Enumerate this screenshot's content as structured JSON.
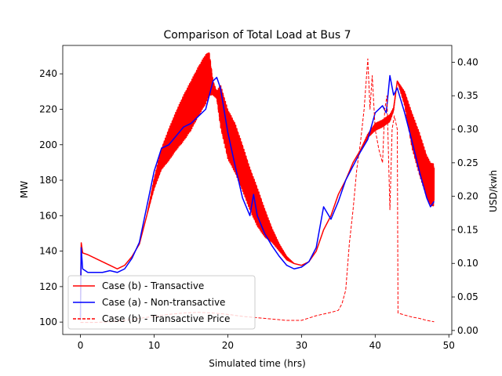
{
  "chart_data": {
    "type": "line",
    "title": "Comparison of Total Load at Bus 7",
    "xlabel": "Simulated time (hrs)",
    "ylabel": "MW",
    "y2label": "USD/kwh",
    "xlim": [
      -2.4,
      50.4
    ],
    "ylim": [
      93,
      256
    ],
    "y2lim": [
      -0.006,
      0.425
    ],
    "xticks": [
      0,
      10,
      20,
      30,
      40,
      50
    ],
    "yticks": [
      100,
      120,
      140,
      160,
      180,
      200,
      220,
      240
    ],
    "y2ticks": [
      0.0,
      0.05,
      0.1,
      0.15,
      0.2,
      0.25,
      0.3,
      0.35,
      0.4
    ],
    "y2tick_labels": [
      "0.00",
      "0.05",
      "0.10",
      "0.15",
      "0.20",
      "0.25",
      "0.30",
      "0.35",
      "0.40"
    ],
    "legend_position": "lower-left",
    "series": [
      {
        "name": "Case (b) - Transactive",
        "color": "#ff0000",
        "style": "solid",
        "axis": "left",
        "oscillating": true,
        "x": [
          0,
          0.1,
          0.3,
          1,
          2,
          3,
          4,
          5,
          6,
          7,
          8,
          9,
          10,
          11,
          12,
          13,
          14,
          15,
          16,
          17,
          17.5,
          18,
          18.5,
          19,
          20,
          21,
          22,
          23,
          24,
          25,
          26,
          27,
          28,
          29,
          30,
          31,
          32,
          33,
          34,
          35,
          36,
          37,
          38,
          39,
          40,
          41,
          42,
          42.5,
          43,
          44,
          45,
          46,
          47,
          47.5,
          48
        ],
        "y": [
          103,
          145,
          139,
          138,
          136,
          134,
          132,
          130,
          132,
          137,
          144,
          160,
          178,
          192,
          200,
          208,
          215,
          222,
          230,
          237,
          240,
          232,
          228,
          222,
          206,
          198,
          187,
          175,
          165,
          156,
          149,
          142,
          136,
          133,
          132,
          134,
          140,
          152,
          160,
          172,
          180,
          190,
          197,
          205,
          210,
          212,
          215,
          220,
          236,
          226,
          208,
          195,
          182,
          178,
          177
        ],
        "amplitude": [
          0,
          0,
          0,
          0,
          0,
          0,
          0,
          0,
          0,
          0,
          0,
          0,
          3,
          6,
          9,
          11,
          13,
          14,
          14,
          14,
          12,
          4,
          2,
          12,
          14,
          14,
          13,
          12,
          11,
          8,
          4,
          2,
          1,
          0,
          0,
          0,
          0,
          0,
          0,
          0,
          0,
          0,
          0,
          1,
          2,
          2,
          2,
          1,
          0,
          4,
          10,
          12,
          12,
          12,
          12
        ]
      },
      {
        "name": "Case (a) - Non-transactive",
        "color": "#0000ff",
        "style": "solid",
        "axis": "left",
        "oscillating": false,
        "x": [
          0,
          0.1,
          0.3,
          1,
          2,
          3,
          4,
          5,
          6,
          7,
          8,
          9,
          10,
          11,
          12,
          13,
          14,
          15,
          16,
          17,
          18,
          18.5,
          19,
          20,
          21,
          22,
          23,
          23.5,
          24,
          25,
          26,
          27,
          28,
          29,
          30,
          31,
          32,
          33,
          34,
          35,
          36,
          37,
          38,
          39,
          40,
          41,
          41.5,
          42,
          42.5,
          43,
          44,
          45,
          46,
          47,
          47.5,
          48
        ],
        "y": [
          101,
          142,
          130,
          128,
          128,
          128,
          129,
          128,
          130,
          136,
          145,
          165,
          185,
          198,
          200,
          205,
          210,
          212,
          216,
          220,
          236,
          238,
          232,
          207,
          188,
          170,
          160,
          172,
          160,
          150,
          143,
          137,
          132,
          130,
          131,
          134,
          142,
          165,
          158,
          168,
          180,
          188,
          196,
          203,
          218,
          222,
          218,
          239,
          228,
          232,
          218,
          202,
          185,
          170,
          165,
          168
        ]
      },
      {
        "name": "Case (b) - Transactive Price",
        "color": "#ff0000",
        "style": "dashed",
        "axis": "right",
        "oscillating": false,
        "x": [
          0,
          2,
          4,
          6,
          8,
          10,
          12,
          14,
          16,
          18,
          19,
          20,
          22,
          24,
          26,
          28,
          30,
          32,
          34,
          35,
          35.5,
          36,
          36.5,
          37,
          37.5,
          38,
          38.5,
          39,
          39.3,
          39.6,
          40,
          40.5,
          41,
          41.3,
          41.6,
          42,
          42.3,
          42.6,
          43,
          43.1,
          44,
          45,
          46,
          47,
          48
        ],
        "y": [
          0.012,
          0.012,
          0.013,
          0.015,
          0.018,
          0.021,
          0.024,
          0.026,
          0.027,
          0.026,
          0.025,
          0.024,
          0.021,
          0.019,
          0.017,
          0.015,
          0.015,
          0.022,
          0.027,
          0.03,
          0.04,
          0.06,
          0.13,
          0.18,
          0.24,
          0.28,
          0.33,
          0.405,
          0.33,
          0.38,
          0.3,
          0.27,
          0.25,
          0.33,
          0.35,
          0.18,
          0.3,
          0.32,
          0.3,
          0.026,
          0.023,
          0.02,
          0.018,
          0.015,
          0.013
        ]
      }
    ]
  }
}
